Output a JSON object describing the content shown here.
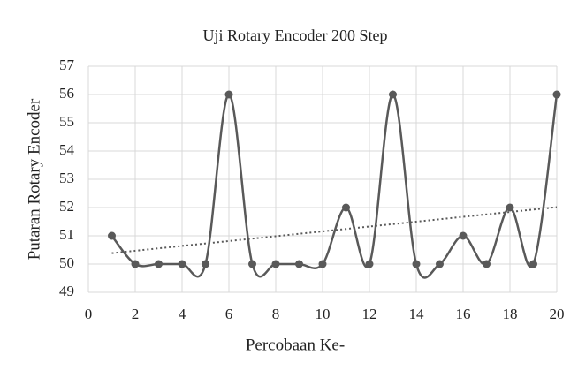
{
  "chart_data": {
    "type": "line",
    "title": "Uji Rotary Encoder 200 Step",
    "x_label": "Percobaan Ke-",
    "y_label": "Putaran Rotary Encoder",
    "x": [
      1,
      2,
      3,
      4,
      5,
      6,
      7,
      8,
      9,
      10,
      11,
      12,
      13,
      14,
      15,
      16,
      17,
      18,
      19,
      20
    ],
    "series": [
      {
        "color": "#595959",
        "values": [
          51,
          50,
          50,
          50,
          50,
          56,
          50,
          50,
          50,
          50,
          52,
          50,
          56,
          50,
          50,
          51,
          50,
          52,
          50,
          56
        ]
      }
    ],
    "xlim": [
      0,
      20
    ],
    "xticks": [
      0,
      2,
      4,
      6,
      8,
      10,
      12,
      14,
      16,
      18,
      20
    ],
    "ylim": [
      49,
      57
    ],
    "yticks": [
      49,
      50,
      51,
      52,
      53,
      54,
      55,
      56,
      57
    ],
    "grid": true,
    "smooth": true,
    "trendline": "linear"
  }
}
